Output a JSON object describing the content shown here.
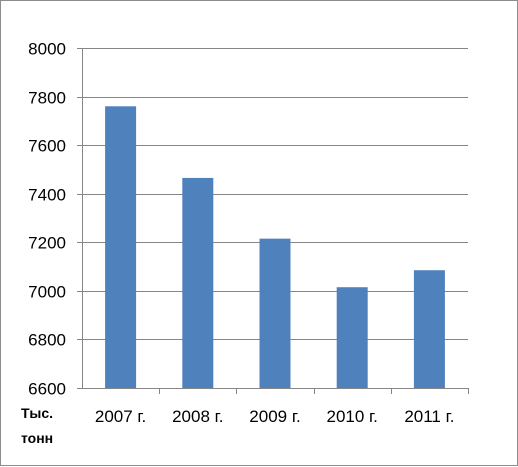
{
  "chart_data": {
    "type": "bar",
    "categories": [
      "2007 г.",
      "2008 г.",
      "2009 г.",
      "2010 г.",
      "2011 г."
    ],
    "values": [
      7760,
      7465,
      7215,
      7015,
      7085
    ],
    "ylim": [
      6600,
      8000
    ],
    "yticks": [
      6600,
      6800,
      7000,
      7200,
      7400,
      7600,
      7800,
      8000
    ],
    "ytick_labels": [
      "6600",
      "6800",
      "7000",
      "7200",
      "7400",
      "7600",
      "7800",
      "8000"
    ],
    "unit_label_lines": [
      "Тыс.",
      "тонн"
    ],
    "bar_color": "#4f81bd",
    "grid": true,
    "legend": "none"
  }
}
